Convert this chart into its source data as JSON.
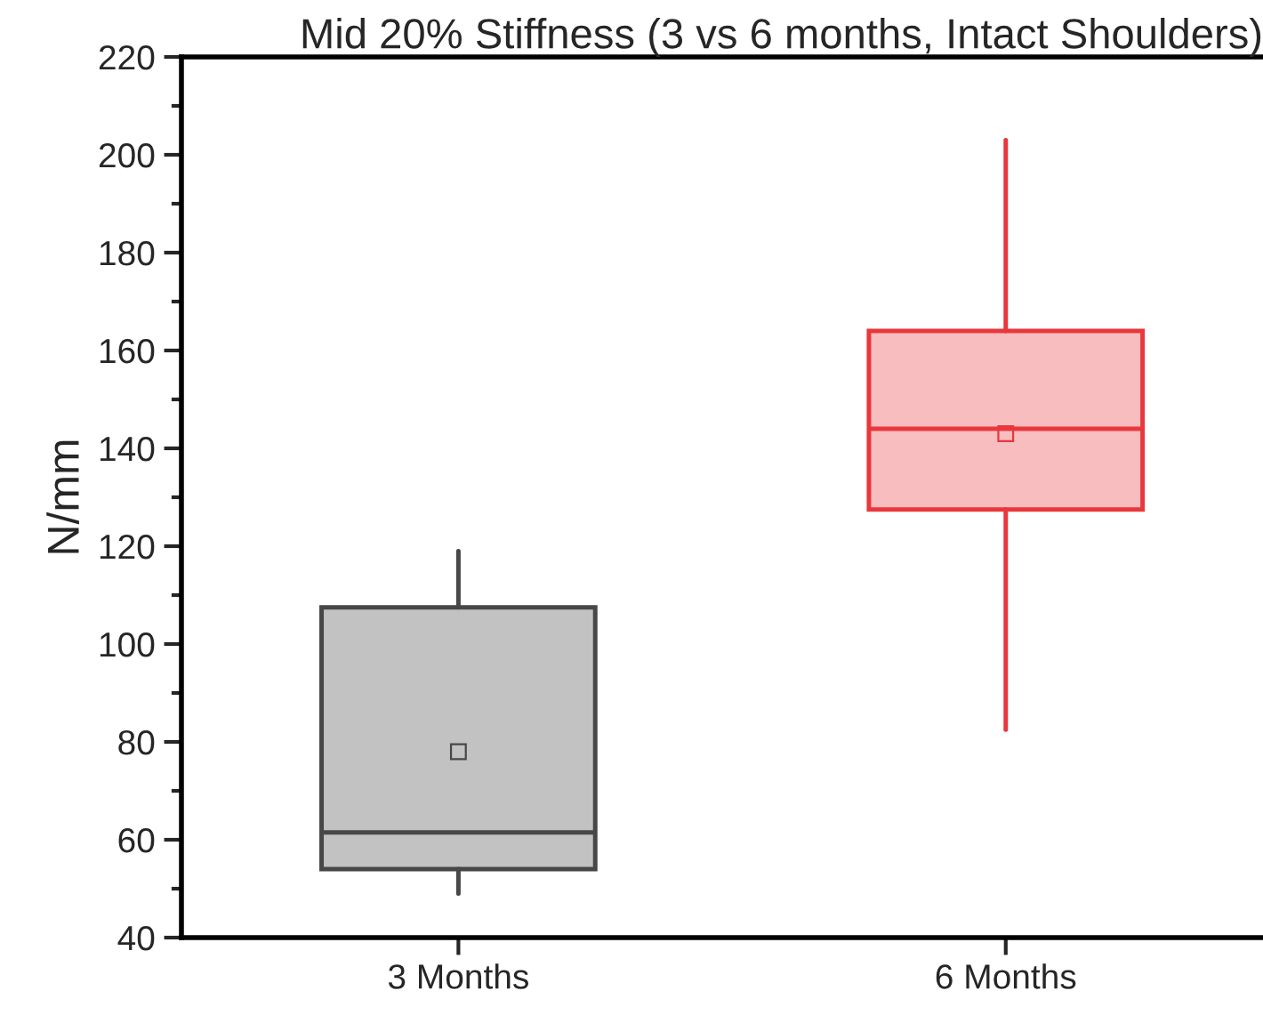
{
  "chart_data": {
    "type": "box",
    "title": "Mid 20% Stiffness (3 vs 6 months, Intact Shoulders)",
    "ylabel": "N/mm",
    "categories": [
      "3 Months",
      "6 Months"
    ],
    "series": [
      {
        "color": "#474747",
        "boxes": [
          {
            "low": 49,
            "q1": 54,
            "median": 61.5,
            "q3": 107.5,
            "high": 119,
            "mean": 78
          },
          null
        ]
      },
      {
        "color": "#e8383d",
        "boxes": [
          null,
          {
            "low": 82.5,
            "q1": 127.5,
            "median": 144,
            "q3": 164,
            "high": 203,
            "mean": 143
          }
        ]
      }
    ],
    "ylim": [
      40,
      220
    ],
    "yticks": [
      40,
      60,
      80,
      100,
      120,
      140,
      160,
      180,
      200,
      220
    ],
    "grid": false,
    "legend": false
  }
}
